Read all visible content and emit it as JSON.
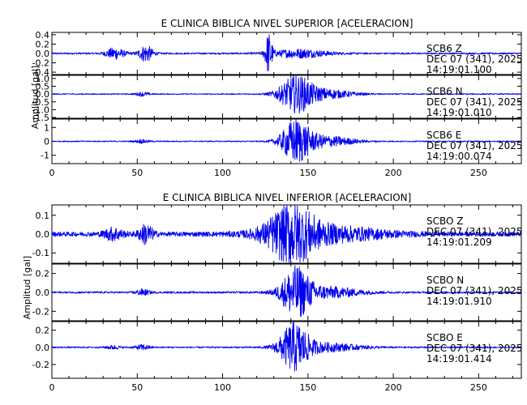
{
  "chart_data": [
    {
      "type": "line",
      "title": "E CLINICA BIBLICA NIVEL SUPERIOR [ACELERACION]",
      "ylabel": "Amplitud [gal]",
      "xlim": [
        0,
        275
      ],
      "xticks": [
        0,
        50,
        100,
        150,
        200,
        250
      ],
      "line_color": "#0000ee",
      "grid": false,
      "panels": [
        {
          "name": "SCB6 Z",
          "ylim": [
            -0.45,
            0.45
          ],
          "yticks": [
            0.4,
            0.2,
            0.0,
            -0.2,
            -0.4
          ],
          "ytick_labels": [
            "0.4",
            "0.2",
            "0.0",
            "-0.2",
            "-0.4"
          ],
          "annotation": [
            "SCB6    Z",
            "DEC 07 (341), 2025",
            "14:19:01.100"
          ],
          "noise": 0.018,
          "bursts": [
            {
              "center": 37,
              "width": 4,
              "amp": 0.12
            },
            {
              "center": 55,
              "width": 3,
              "amp": 0.18
            },
            {
              "center": 127,
              "width": 1.5,
              "amp": 0.42
            },
            {
              "center": 145,
              "width": 12,
              "amp": 0.09
            }
          ]
        },
        {
          "name": "SCB6 N",
          "ylim": [
            -1.55,
            1.2
          ],
          "yticks": [
            1.0,
            0.5,
            0.0,
            -0.5,
            -1.0,
            -1.5
          ],
          "ytick_labels": [
            "1.0",
            "0.5",
            "0.0",
            "-0.5",
            "-1.0",
            "-1.5"
          ],
          "annotation": [
            "SCB6    N",
            "DEC 07 (341), 2025",
            "14:19:01.010"
          ],
          "noise": 0.035,
          "bursts": [
            {
              "center": 53,
              "width": 3,
              "amp": 0.12
            },
            {
              "center": 143,
              "width": 7,
              "amp": 1.1
            },
            {
              "center": 160,
              "width": 12,
              "amp": 0.3
            }
          ]
        },
        {
          "name": "SCB6 E",
          "ylim": [
            -1.6,
            1.6
          ],
          "yticks": [
            1,
            0,
            -1
          ],
          "ytick_labels": [
            "1",
            "0",
            "-1"
          ],
          "annotation": [
            "SCB6    E",
            "DEC 07 (341), 2025",
            "14:19:00.074"
          ],
          "noise": 0.04,
          "bursts": [
            {
              "center": 53,
              "width": 3,
              "amp": 0.12
            },
            {
              "center": 143,
              "width": 6,
              "amp": 1.5
            },
            {
              "center": 160,
              "width": 12,
              "amp": 0.4
            }
          ]
        }
      ]
    },
    {
      "type": "line",
      "title": "E CLINICA BIBLICA NIVEL INFERIOR [ACELERACION]",
      "ylabel": "Amplitud [gal]",
      "xlim": [
        0,
        275
      ],
      "xticks": [
        0,
        50,
        100,
        150,
        200,
        250
      ],
      "line_color": "#0000ee",
      "grid": false,
      "panels": [
        {
          "name": "SCBO Z",
          "ylim": [
            -0.155,
            0.155
          ],
          "yticks": [
            0.1,
            0.0,
            -0.1
          ],
          "ytick_labels": [
            "0.1",
            "0.0",
            "-0.1"
          ],
          "annotation": [
            "SCBO    Z",
            "DEC 07 (341), 2025",
            "14:19:01.209"
          ],
          "noise": 0.012,
          "bursts": [
            {
              "center": 36,
              "width": 4,
              "amp": 0.03
            },
            {
              "center": 55,
              "width": 3,
              "amp": 0.05
            },
            {
              "center": 140,
              "width": 10,
              "amp": 0.13
            },
            {
              "center": 160,
              "width": 25,
              "amp": 0.04
            }
          ]
        },
        {
          "name": "SCBO N",
          "ylim": [
            -0.3,
            0.3
          ],
          "yticks": [
            0.2,
            0.0,
            -0.2
          ],
          "ytick_labels": [
            "0.2",
            "0.0",
            "-0.2"
          ],
          "annotation": [
            "SCBO    N",
            "DEC 07 (341), 2025",
            "14:19:01.910"
          ],
          "noise": 0.01,
          "bursts": [
            {
              "center": 53,
              "width": 3,
              "amp": 0.03
            },
            {
              "center": 143,
              "width": 6,
              "amp": 0.25
            },
            {
              "center": 160,
              "width": 15,
              "amp": 0.06
            }
          ]
        },
        {
          "name": "SCBO E",
          "ylim": [
            -0.36,
            0.3
          ],
          "yticks": [
            0.2,
            0.0,
            -0.2
          ],
          "ytick_labels": [
            "0.2",
            "0.0",
            "-0.2"
          ],
          "annotation": [
            "SCBO    E",
            "DEC 07 (341), 2025",
            "14:19:01.414"
          ],
          "noise": 0.009,
          "bursts": [
            {
              "center": 36,
              "width": 3,
              "amp": 0.02
            },
            {
              "center": 53,
              "width": 3,
              "amp": 0.03
            },
            {
              "center": 142,
              "width": 6,
              "amp": 0.27
            },
            {
              "center": 160,
              "width": 15,
              "amp": 0.05
            }
          ]
        }
      ]
    }
  ]
}
